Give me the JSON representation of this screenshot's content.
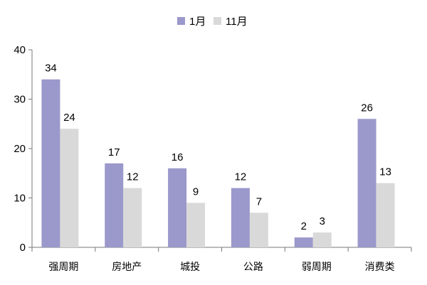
{
  "chart_data": {
    "type": "bar",
    "categories": [
      "强周期",
      "房地产",
      "城投",
      "公路",
      "弱周期",
      "消费类"
    ],
    "series": [
      {
        "name": "1月",
        "values": [
          34,
          17,
          16,
          12,
          2,
          26
        ],
        "color": "#9b98cb"
      },
      {
        "name": "11月",
        "values": [
          24,
          12,
          9,
          7,
          3,
          13
        ],
        "color": "#d9d9d9"
      }
    ],
    "data_labels": [
      [
        "34",
        "17",
        "16",
        "12",
        "2",
        "26"
      ],
      [
        "24",
        "12",
        "9",
        "7",
        "3",
        "13"
      ]
    ],
    "ylim": [
      0,
      40
    ],
    "yticks": [
      0,
      10,
      20,
      30,
      40
    ],
    "ytick_labels": [
      "0",
      "10",
      "20",
      "30",
      "40"
    ],
    "title": "",
    "xlabel": "",
    "ylabel": "",
    "grid": false,
    "legend_position": "top-center"
  }
}
